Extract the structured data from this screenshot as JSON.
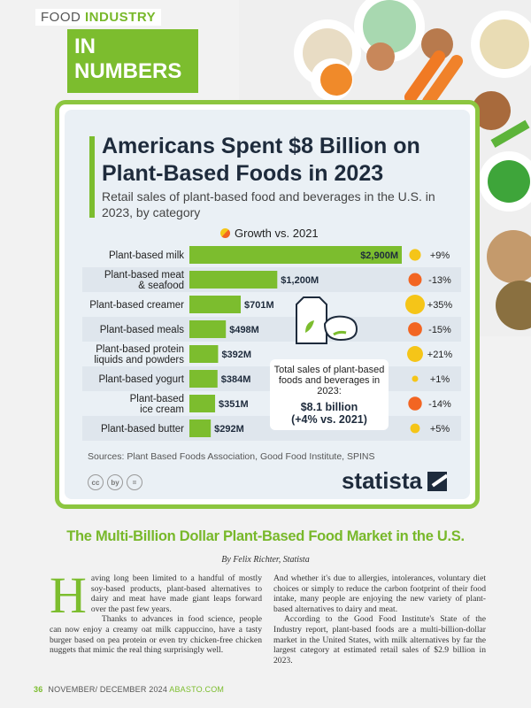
{
  "header": {
    "line1_prefix": "FOOD ",
    "line1_highlight": "INDUSTRY",
    "line2": "IN NUMBERS"
  },
  "card": {
    "title": "Americans Spent $8 Billion on Plant-Based Foods in 2023",
    "subtitle": "Retail sales of plant-based food and beverages in the U.S. in 2023, by category",
    "legend_label": "Growth vs. 2021",
    "sources": "Sources: Plant Based Foods Association, Good Food Institute, SPINS",
    "brand": "statista",
    "license_icons": [
      "cc",
      "by",
      "="
    ],
    "total_label": "Total sales of plant-based foods and beverages in 2023:",
    "total_value": "$8.1 billion",
    "total_change": "(+4% vs. 2021)"
  },
  "chart_data": {
    "type": "bar",
    "orientation": "horizontal",
    "categories": [
      "Plant-based milk",
      "Plant-based meat & seafood",
      "Plant-based creamer",
      "Plant-based meals",
      "Plant-based protein liquids and powders",
      "Plant-based yogurt",
      "Plant-based ice cream",
      "Plant-based butter"
    ],
    "category_lines": [
      [
        "Plant-based milk"
      ],
      [
        "Plant-based meat",
        "& seafood"
      ],
      [
        "Plant-based creamer"
      ],
      [
        "Plant-based meals"
      ],
      [
        "Plant-based protein",
        "liquids and powders"
      ],
      [
        "Plant-based yogurt"
      ],
      [
        "Plant-based",
        "ice cream"
      ],
      [
        "Plant-based butter"
      ]
    ],
    "values": [
      2900,
      1200,
      701,
      498,
      392,
      384,
      351,
      292
    ],
    "value_labels": [
      "$2,900M",
      "$1,200M",
      "$701M",
      "$498M",
      "$392M",
      "$384M",
      "$351M",
      "$292M"
    ],
    "units": "$M",
    "growth": [
      9,
      -13,
      35,
      -15,
      21,
      1,
      -14,
      5
    ],
    "growth_labels": [
      "+9%",
      "-13%",
      "+35%",
      "-15%",
      "+21%",
      "+1%",
      "-14%",
      "+5%"
    ],
    "growth_name": "Growth vs. 2021",
    "colors": {
      "bar": "#7cbd2e",
      "positive": "#f5c518",
      "negative": "#f26522",
      "row_alt": "#dfe6ed"
    }
  },
  "article": {
    "title": "The Multi-Billion Dollar Plant-Based Food Market in the U.S.",
    "byline": "By Felix Richter, Statista",
    "dropcap": "H",
    "col1_p1": "aving long been limited to a handful of mostly soy-based products, plant-based alternatives to dairy and meat have made giant leaps forward over the past few years.",
    "col1_p2": "Thanks to advances in food science, people can now enjoy a creamy oat milk cappuccino, have a tasty burger based on pea protein or even try chicken-free chicken nuggets that mimic the real thing surprisingly well.",
    "col2_p1": "And whether it's due to allergies, intolerances, voluntary diet choices or simply to reduce the carbon footprint of their food intake, many people are enjoying the new variety of plant-based alternatives to dairy and meat.",
    "col2_p2": "According to the Good Food Institute's State of the Industry report, plant-based foods are a multi-billion-dollar market in the United States, with milk alternatives by far the largest category at estimated retail sales of $2.9 billion in 2023."
  },
  "footer": {
    "page": "36",
    "issue": "NOVEMBER/ DECEMBER 2024 ",
    "site": "ABASTO.COM"
  }
}
